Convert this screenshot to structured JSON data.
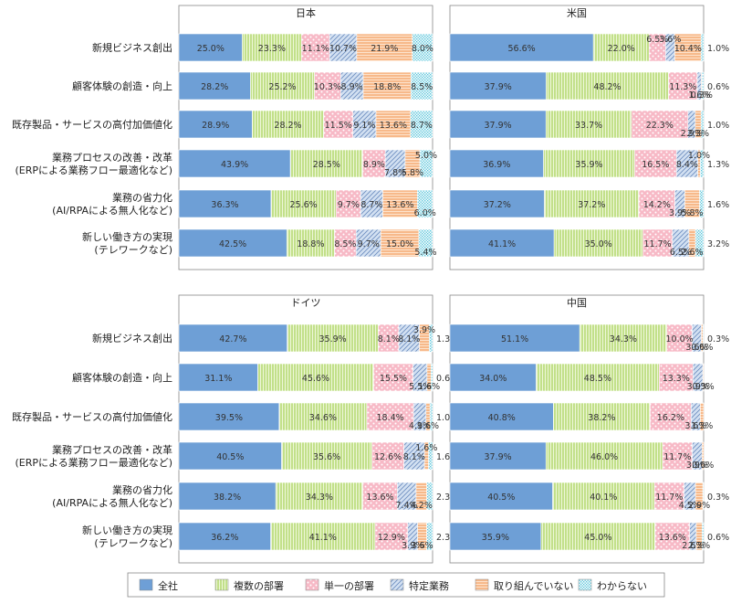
{
  "chart_data": {
    "type": "bar",
    "orientation": "horizontal",
    "stacked": "percent",
    "grid": false,
    "legend_position": "bottom",
    "categories": [
      "新規ビジネス創出",
      "顧客体験の創造・向上",
      "既存製品・サービスの高付加価値化",
      "業務プロセスの改善・改革\n(ERPによる業務フロー最適化など)",
      "業務の省力化\n(AI/RPAによる無人化など)",
      "新しい働き方の実現\n(テレワークなど)"
    ],
    "series_names": [
      "全社",
      "複数の部署",
      "単一の部署",
      "特定業務",
      "取り組んでいない",
      "わからない"
    ],
    "colors": [
      "#6e9fd6",
      "#c2e08a",
      "#f7b9c6",
      "#a9c4e6",
      "#f7b98a",
      "#9fd8e6"
    ],
    "panels": [
      {
        "title": "日本",
        "values": [
          [
            25.0,
            23.3,
            11.1,
            10.7,
            21.9,
            8.0
          ],
          [
            28.2,
            25.2,
            10.3,
            8.9,
            18.8,
            8.5
          ],
          [
            28.9,
            28.2,
            11.5,
            9.1,
            13.6,
            8.7
          ],
          [
            43.9,
            28.5,
            8.9,
            7.8,
            5.8,
            5.0
          ],
          [
            36.3,
            25.6,
            9.7,
            8.7,
            13.6,
            6.0
          ],
          [
            42.5,
            18.8,
            8.5,
            9.7,
            15.0,
            5.4
          ]
        ]
      },
      {
        "title": "米国",
        "values": [
          [
            56.6,
            22.0,
            6.5,
            3.6,
            10.4,
            1.0
          ],
          [
            37.9,
            48.2,
            11.3,
            1.6,
            0.3,
            0.6
          ],
          [
            37.9,
            33.7,
            22.3,
            2.9,
            2.3,
            1.0
          ],
          [
            36.9,
            35.9,
            16.5,
            8.4,
            1.0,
            1.3
          ],
          [
            37.2,
            37.2,
            14.2,
            3.9,
            5.8,
            1.6
          ],
          [
            41.1,
            35.0,
            11.7,
            6.5,
            2.6,
            3.2
          ]
        ]
      },
      {
        "title": "ドイツ",
        "values": [
          [
            42.7,
            35.9,
            8.1,
            8.1,
            3.9,
            1.3
          ],
          [
            31.1,
            45.6,
            15.5,
            5.5,
            1.6,
            0.6
          ],
          [
            39.5,
            34.6,
            18.4,
            4.9,
            1.6,
            1.0
          ],
          [
            40.5,
            35.6,
            12.6,
            8.1,
            1.6,
            1.6
          ],
          [
            38.2,
            34.3,
            13.6,
            7.4,
            4.2,
            2.3
          ],
          [
            36.2,
            41.1,
            12.9,
            3.9,
            3.6,
            2.3
          ]
        ]
      },
      {
        "title": "中国",
        "values": [
          [
            51.1,
            34.3,
            10.0,
            3.6,
            0.6,
            0.3
          ],
          [
            34.0,
            48.5,
            13.3,
            3.9,
            0.3,
            0.0
          ],
          [
            40.8,
            38.2,
            16.2,
            3.6,
            1.3,
            0.0
          ],
          [
            37.9,
            46.0,
            11.7,
            3.9,
            0.6,
            0.0
          ],
          [
            40.5,
            40.1,
            11.7,
            4.5,
            2.9,
            0.3
          ],
          [
            35.9,
            45.0,
            13.6,
            2.6,
            2.3,
            0.6
          ]
        ]
      }
    ],
    "label_text": [
      [
        [
          "25.0%",
          "23.3%",
          "11.1%",
          "10.7%",
          "21.9%",
          "8.0%"
        ],
        [
          "28.2%",
          "25.2%",
          "10.3%",
          "8.9%",
          "18.8%",
          "8.5%"
        ],
        [
          "28.9%",
          "28.2%",
          "11.5%",
          "9.1%",
          "13.6%",
          "8.7%"
        ],
        [
          "43.9%",
          "28.5%",
          "8.9%",
          "7.8%",
          "5.8%",
          "5.0%"
        ],
        [
          "36.3%",
          "25.6%",
          "9.7%",
          "8.7%",
          "13.6%",
          "6.0%"
        ],
        [
          "42.5%",
          "18.8%",
          "8.5%",
          "9.7%",
          "15.0%",
          "5.4%"
        ]
      ],
      [
        [
          "56.6%",
          "22.0%",
          "6.5%",
          "3.6%",
          "10.4%",
          "1.0%"
        ],
        [
          "37.9%",
          "48.2%",
          "11.3%",
          "1.6%",
          "0.3%",
          "0.6%"
        ],
        [
          "37.9%",
          "33.7%",
          "22.3%",
          "2.9%",
          "2.3%",
          "1.0%"
        ],
        [
          "36.9%",
          "35.9%",
          "16.5%",
          "8.4%",
          "1.0%",
          "1.3%"
        ],
        [
          "37.2%",
          "37.2%",
          "14.2%",
          "3.9%",
          "5.8%",
          "1.6%"
        ],
        [
          "41.1%",
          "35.0%",
          "11.7%",
          "6.5%",
          "2.6%",
          "3.2%"
        ]
      ],
      [
        [
          "42.7%",
          "35.9%",
          "8.1%",
          "8.1%",
          "3.9%",
          "1.3%"
        ],
        [
          "31.1%",
          "45.6%",
          "15.5%",
          "5.5%",
          "1.6%",
          "0.6%"
        ],
        [
          "39.5%",
          "34.6%",
          "18.4%",
          "4.9%",
          "1.6%",
          "1.0%"
        ],
        [
          "40.5%",
          "35.6%",
          "12.6%",
          "8.1%",
          "1.6%",
          "1.6%"
        ],
        [
          "38.2%",
          "34.3%",
          "13.6%",
          "7.4%",
          "4.2%",
          "2.3%"
        ],
        [
          "36.2%",
          "41.1%",
          "12.9%",
          "3.9%",
          "3.6%",
          "2.3%"
        ]
      ],
      [
        [
          "51.1%",
          "34.3%",
          "10.0%",
          "3.6%",
          "0.6%",
          "0.3%"
        ],
        [
          "34.0%",
          "48.5%",
          "13.3%",
          "3.9%",
          "0.3%",
          ""
        ],
        [
          "40.8%",
          "38.2%",
          "16.2%",
          "3.6%",
          "1.3%",
          ""
        ],
        [
          "37.9%",
          "46.0%",
          "11.7%",
          "3.9%",
          "0.6%",
          ""
        ],
        [
          "40.5%",
          "40.1%",
          "11.7%",
          "4.5%",
          "2.9%",
          "0.3%"
        ],
        [
          "35.9%",
          "45.0%",
          "13.6%",
          "2.6%",
          "2.3%",
          "0.6%"
        ]
      ]
    ],
    "xlim": [
      0,
      100
    ]
  }
}
